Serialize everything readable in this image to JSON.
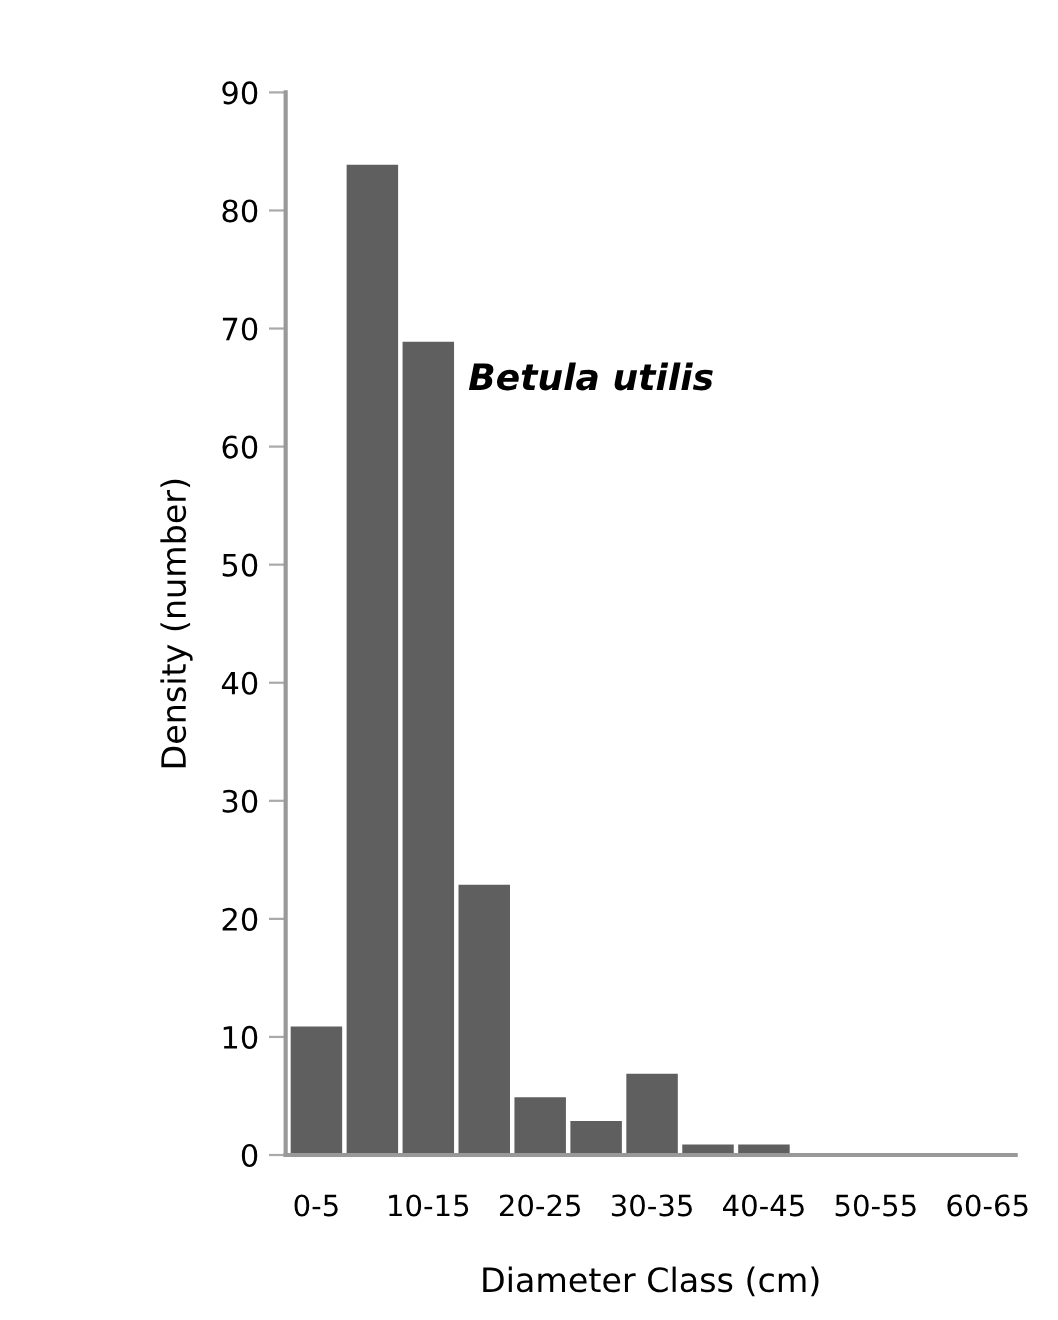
{
  "chart_data": {
    "type": "bar",
    "xlabel": "Diameter Class (cm)",
    "ylabel": "Density (number)",
    "annotations": [
      "Betula utilis"
    ],
    "categories": [
      "0-5",
      null,
      "10-15",
      null,
      "20-25",
      null,
      "30-35",
      null,
      "40-45",
      null,
      "50-55",
      null,
      "60-65"
    ],
    "values": [
      11,
      84,
      69,
      23,
      5,
      3,
      7,
      1,
      1,
      0,
      0,
      0,
      0
    ],
    "color": "#5f5f5f",
    "ylim": [
      0,
      90
    ],
    "yticks": [
      0,
      10,
      20,
      30,
      40,
      50,
      60,
      70,
      80,
      90
    ],
    "grid": false,
    "legend": false
  }
}
